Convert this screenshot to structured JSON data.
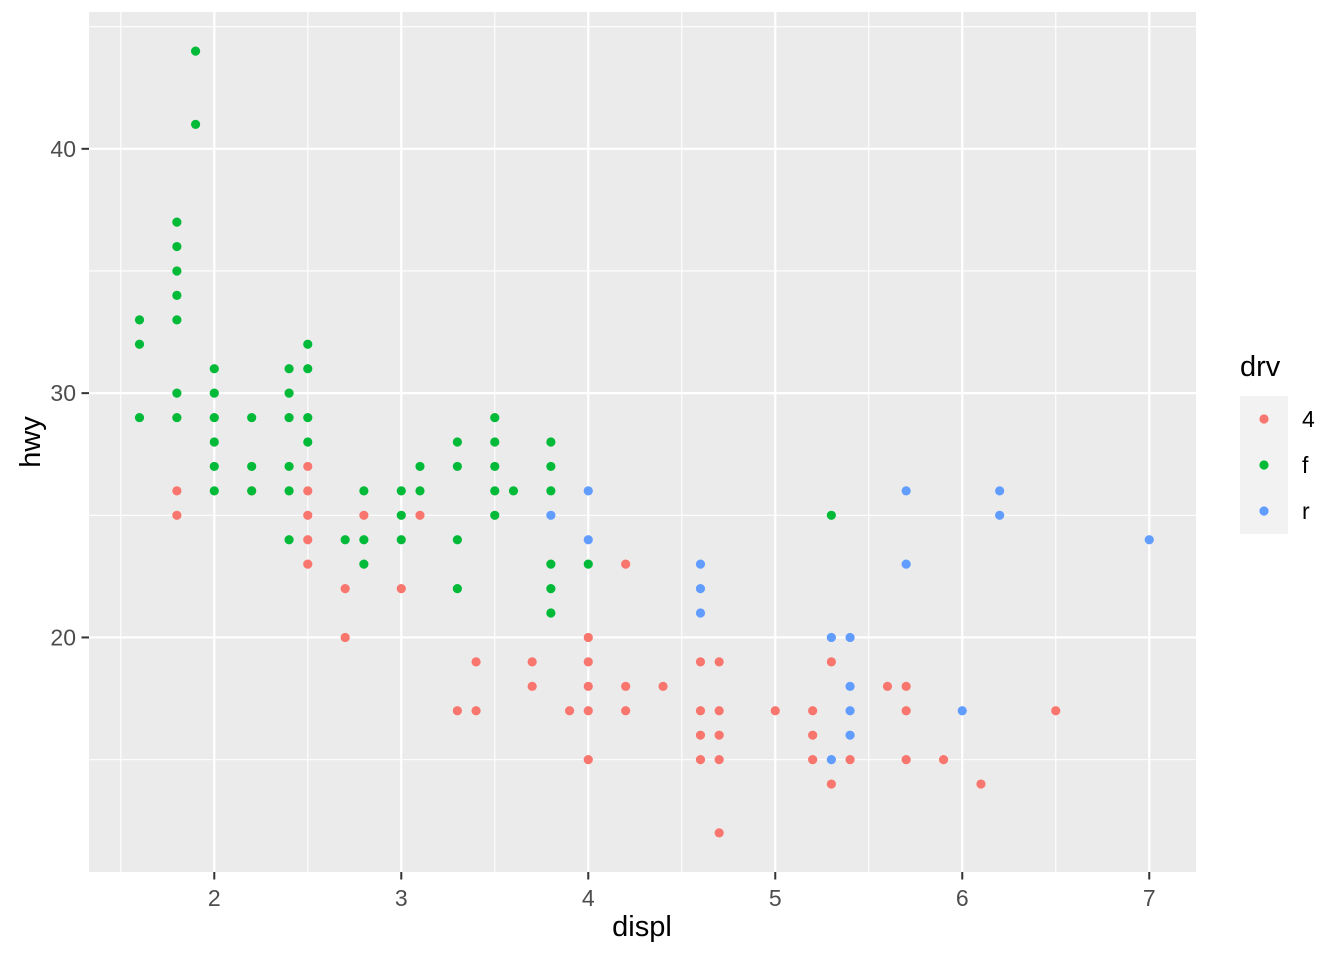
{
  "chart_data": {
    "type": "scatter",
    "title": "",
    "xlabel": "displ",
    "ylabel": "hwy",
    "xlim": [
      1.33,
      7.25
    ],
    "ylim": [
      10.4,
      45.6
    ],
    "x_ticks": [
      2,
      3,
      4,
      5,
      6,
      7
    ],
    "y_ticks": [
      20,
      30,
      40
    ],
    "x_minor_ticks": [
      1.5,
      2.5,
      3.5,
      4.5,
      5.5,
      6.5
    ],
    "y_minor_ticks": [
      15,
      25,
      35,
      45
    ],
    "grid": "on",
    "panel_background": "#EBEBEB",
    "grid_color": "#FFFFFF",
    "tick_mark_color": "#333333",
    "tick_label_color": "#4D4D4D",
    "legend": {
      "title": "drv",
      "position": "right",
      "key_background": "#F2F2F2",
      "entries": [
        {
          "label": "4",
          "color": "#F8766D"
        },
        {
          "label": "f",
          "color": "#00BA38"
        },
        {
          "label": "r",
          "color": "#619CFF"
        }
      ]
    },
    "series": [
      {
        "name": "4",
        "color": "#F8766D",
        "points": [
          [
            1.8,
            25
          ],
          [
            1.8,
            26
          ],
          [
            2.2,
            26
          ],
          [
            2.5,
            23
          ],
          [
            2.5,
            24
          ],
          [
            2.5,
            25
          ],
          [
            2.5,
            26
          ],
          [
            2.5,
            27
          ],
          [
            2.7,
            20
          ],
          [
            2.7,
            22
          ],
          [
            2.8,
            25
          ],
          [
            3.0,
            22
          ],
          [
            3.1,
            25
          ],
          [
            3.3,
            17
          ],
          [
            3.4,
            17
          ],
          [
            3.4,
            19
          ],
          [
            3.7,
            18
          ],
          [
            3.7,
            19
          ],
          [
            3.9,
            17
          ],
          [
            4.0,
            15
          ],
          [
            4.0,
            17
          ],
          [
            4.0,
            18
          ],
          [
            4.0,
            19
          ],
          [
            4.0,
            20
          ],
          [
            4.2,
            17
          ],
          [
            4.2,
            18
          ],
          [
            4.2,
            23
          ],
          [
            4.4,
            18
          ],
          [
            4.6,
            15
          ],
          [
            4.6,
            16
          ],
          [
            4.6,
            17
          ],
          [
            4.6,
            19
          ],
          [
            4.7,
            12
          ],
          [
            4.7,
            15
          ],
          [
            4.7,
            16
          ],
          [
            4.7,
            17
          ],
          [
            4.7,
            19
          ],
          [
            5.0,
            17
          ],
          [
            5.2,
            15
          ],
          [
            5.2,
            16
          ],
          [
            5.2,
            17
          ],
          [
            5.3,
            14
          ],
          [
            5.3,
            19
          ],
          [
            5.4,
            15
          ],
          [
            5.6,
            18
          ],
          [
            5.7,
            15
          ],
          [
            5.7,
            17
          ],
          [
            5.7,
            18
          ],
          [
            5.9,
            15
          ],
          [
            6.1,
            14
          ],
          [
            6.5,
            17
          ]
        ]
      },
      {
        "name": "f",
        "color": "#00BA38",
        "points": [
          [
            1.6,
            29
          ],
          [
            1.6,
            32
          ],
          [
            1.6,
            33
          ],
          [
            1.8,
            29
          ],
          [
            1.8,
            30
          ],
          [
            1.8,
            33
          ],
          [
            1.8,
            34
          ],
          [
            1.8,
            35
          ],
          [
            1.8,
            36
          ],
          [
            1.8,
            37
          ],
          [
            1.9,
            41
          ],
          [
            1.9,
            44
          ],
          [
            2.0,
            26
          ],
          [
            2.0,
            27
          ],
          [
            2.0,
            28
          ],
          [
            2.0,
            29
          ],
          [
            2.0,
            30
          ],
          [
            2.0,
            31
          ],
          [
            2.2,
            26
          ],
          [
            2.2,
            27
          ],
          [
            2.2,
            29
          ],
          [
            2.4,
            24
          ],
          [
            2.4,
            26
          ],
          [
            2.4,
            27
          ],
          [
            2.4,
            29
          ],
          [
            2.4,
            30
          ],
          [
            2.4,
            31
          ],
          [
            2.5,
            28
          ],
          [
            2.5,
            29
          ],
          [
            2.5,
            31
          ],
          [
            2.5,
            32
          ],
          [
            2.7,
            24
          ],
          [
            2.8,
            23
          ],
          [
            2.8,
            24
          ],
          [
            2.8,
            26
          ],
          [
            3.0,
            24
          ],
          [
            3.0,
            25
          ],
          [
            3.0,
            26
          ],
          [
            3.1,
            26
          ],
          [
            3.1,
            27
          ],
          [
            3.3,
            22
          ],
          [
            3.3,
            24
          ],
          [
            3.3,
            27
          ],
          [
            3.3,
            28
          ],
          [
            3.5,
            25
          ],
          [
            3.5,
            26
          ],
          [
            3.5,
            27
          ],
          [
            3.5,
            28
          ],
          [
            3.5,
            29
          ],
          [
            3.6,
            26
          ],
          [
            3.8,
            21
          ],
          [
            3.8,
            22
          ],
          [
            3.8,
            23
          ],
          [
            3.8,
            26
          ],
          [
            3.8,
            27
          ],
          [
            3.8,
            28
          ],
          [
            4.0,
            23
          ],
          [
            5.3,
            25
          ]
        ]
      },
      {
        "name": "r",
        "color": "#619CFF",
        "points": [
          [
            3.8,
            25
          ],
          [
            4.0,
            24
          ],
          [
            4.0,
            26
          ],
          [
            4.6,
            21
          ],
          [
            4.6,
            22
          ],
          [
            4.6,
            23
          ],
          [
            5.3,
            15
          ],
          [
            5.3,
            20
          ],
          [
            5.4,
            16
          ],
          [
            5.4,
            17
          ],
          [
            5.4,
            18
          ],
          [
            5.4,
            20
          ],
          [
            5.7,
            23
          ],
          [
            5.7,
            26
          ],
          [
            6.0,
            17
          ],
          [
            6.2,
            25
          ],
          [
            6.2,
            26
          ],
          [
            7.0,
            24
          ]
        ]
      }
    ]
  }
}
